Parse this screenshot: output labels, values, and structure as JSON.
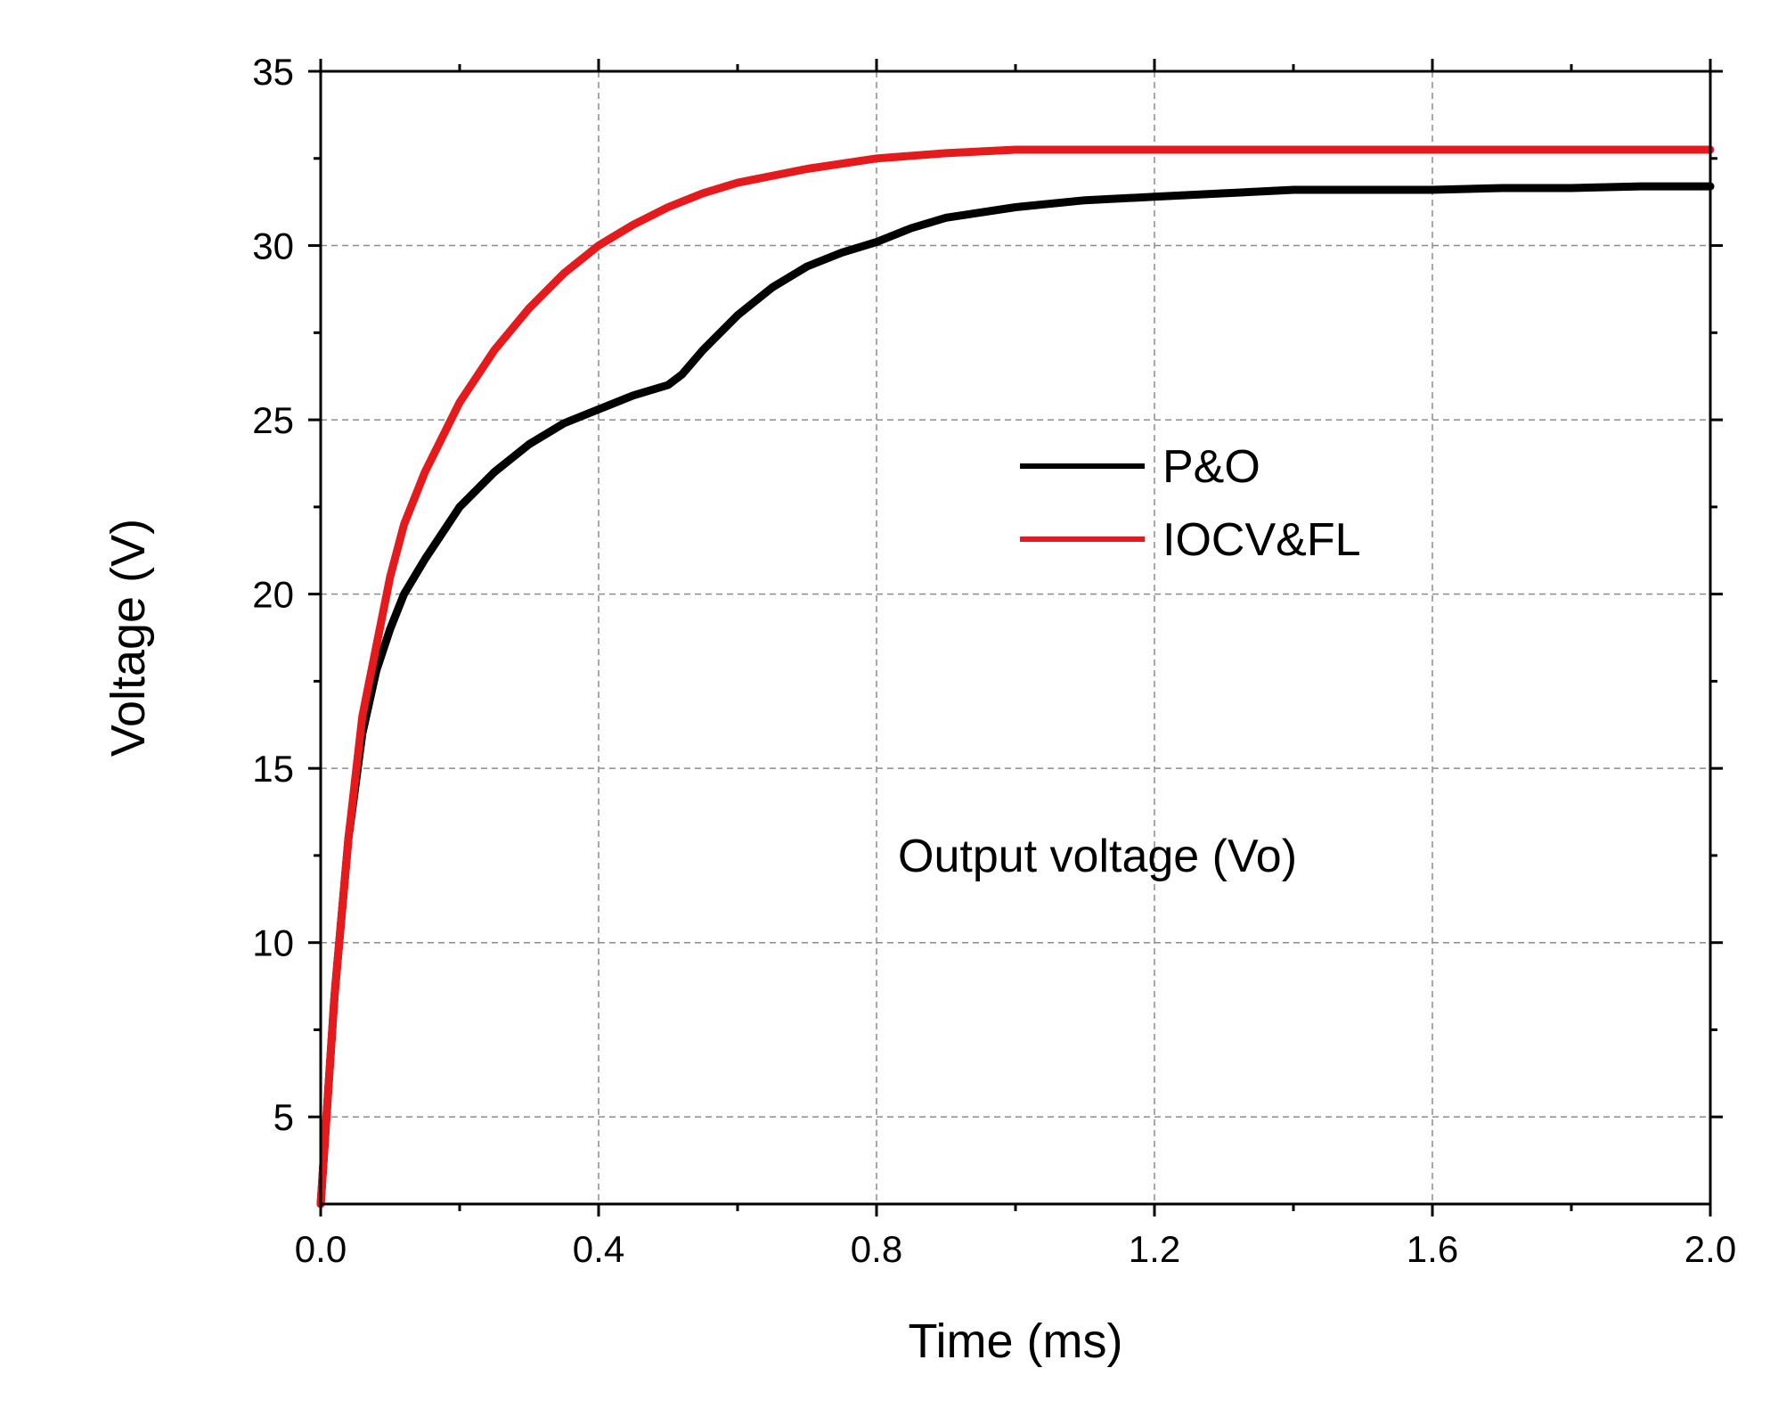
{
  "chart_data": {
    "type": "line",
    "title": "",
    "xlabel": "Time (ms)",
    "ylabel": "Voltage (V)",
    "xlim": [
      0.0,
      2.0
    ],
    "ylim": [
      2.5,
      35
    ],
    "xticks": [
      0.0,
      0.4,
      0.8,
      1.2,
      1.6,
      2.0
    ],
    "xtick_labels": [
      "0.0",
      "0.4",
      "0.8",
      "1.2",
      "1.6",
      "2.0"
    ],
    "yticks": [
      5,
      10,
      15,
      20,
      25,
      30,
      35
    ],
    "ytick_labels": [
      "5",
      "10",
      "15",
      "20",
      "25",
      "30",
      "35"
    ],
    "grid": true,
    "legend_position": "center-right",
    "annotation": "Output voltage (Vo)",
    "series": [
      {
        "name": "P&O",
        "color": "#000000",
        "x": [
          0.0,
          0.02,
          0.04,
          0.06,
          0.08,
          0.1,
          0.12,
          0.15,
          0.2,
          0.25,
          0.3,
          0.35,
          0.4,
          0.45,
          0.5,
          0.52,
          0.55,
          0.6,
          0.65,
          0.7,
          0.75,
          0.8,
          0.85,
          0.9,
          1.0,
          1.1,
          1.2,
          1.3,
          1.4,
          1.5,
          1.6,
          1.7,
          1.8,
          1.9,
          2.0
        ],
        "values": [
          2.5,
          8.5,
          13.0,
          16.0,
          17.8,
          19.0,
          20.0,
          21.0,
          22.5,
          23.5,
          24.3,
          24.9,
          25.3,
          25.7,
          26.0,
          26.3,
          27.0,
          28.0,
          28.8,
          29.4,
          29.8,
          30.1,
          30.5,
          30.8,
          31.1,
          31.3,
          31.4,
          31.5,
          31.6,
          31.6,
          31.6,
          31.65,
          31.65,
          31.7,
          31.7
        ]
      },
      {
        "name": "IOCV&FL",
        "color": "#e41a1c",
        "x": [
          0.0,
          0.02,
          0.04,
          0.06,
          0.08,
          0.1,
          0.12,
          0.15,
          0.2,
          0.25,
          0.3,
          0.35,
          0.4,
          0.45,
          0.5,
          0.55,
          0.6,
          0.7,
          0.8,
          0.9,
          1.0,
          1.1,
          1.2,
          1.4,
          1.6,
          1.8,
          2.0
        ],
        "values": [
          2.5,
          8.5,
          13.0,
          16.5,
          18.5,
          20.5,
          22.0,
          23.5,
          25.5,
          27.0,
          28.2,
          29.2,
          30.0,
          30.6,
          31.1,
          31.5,
          31.8,
          32.2,
          32.5,
          32.65,
          32.75,
          32.75,
          32.75,
          32.75,
          32.75,
          32.75,
          32.75
        ]
      }
    ]
  }
}
